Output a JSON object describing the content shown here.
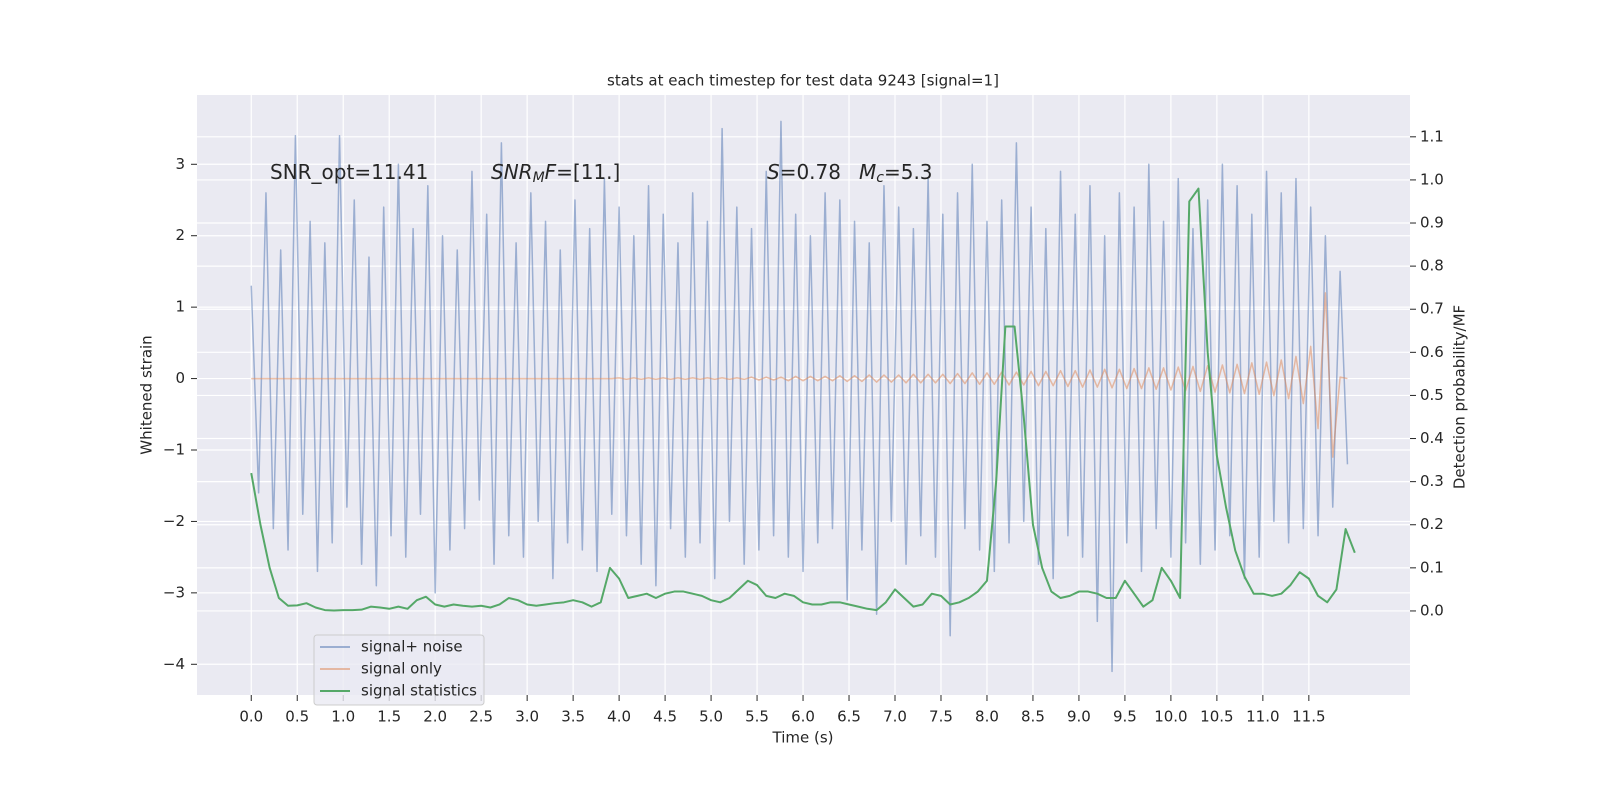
{
  "chart_data": {
    "type": "line",
    "title": "stats at each timestep for test data 9243 [signal=1]",
    "xlabel": "Time (s)",
    "ylabel": "Whitened strain",
    "y2label": "Detection probability/MF",
    "annotations": [
      [
        "SNR_opt=11.41"
      ],
      [
        "SNR",
        "M",
        "F",
        "=[11.]"
      ],
      [
        "S",
        "=0.78"
      ],
      [
        "M",
        "c",
        "=5.3"
      ]
    ],
    "x": [
      0,
      0.08,
      0.16,
      0.24,
      0.32,
      0.4,
      0.48,
      0.56,
      0.64,
      0.72,
      0.8,
      0.88,
      0.96,
      1.04,
      1.12,
      1.2,
      1.28,
      1.36,
      1.44,
      1.52,
      1.6,
      1.68,
      1.76,
      1.84,
      1.92,
      2,
      2.08,
      2.16,
      2.24,
      2.32,
      2.4,
      2.48,
      2.56,
      2.64,
      2.72,
      2.8,
      2.88,
      2.96,
      3.04,
      3.12,
      3.2,
      3.28,
      3.36,
      3.44,
      3.52,
      3.6,
      3.68,
      3.76,
      3.84,
      3.92,
      4,
      4.08,
      4.16,
      4.24,
      4.32,
      4.4,
      4.48,
      4.56,
      4.64,
      4.72,
      4.8,
      4.88,
      4.96,
      5.04,
      5.12,
      5.2,
      5.28,
      5.36,
      5.44,
      5.52,
      5.6,
      5.68,
      5.76,
      5.84,
      5.92,
      6,
      6.08,
      6.16,
      6.24,
      6.32,
      6.4,
      6.48,
      6.56,
      6.64,
      6.72,
      6.8,
      6.88,
      6.96,
      7.04,
      7.12,
      7.2,
      7.28,
      7.36,
      7.44,
      7.52,
      7.6,
      7.68,
      7.76,
      7.84,
      7.92,
      8,
      8.08,
      8.16,
      8.24,
      8.32,
      8.4,
      8.48,
      8.56,
      8.64,
      8.72,
      8.8,
      8.88,
      8.96,
      9.04,
      9.12,
      9.2,
      9.28,
      9.36,
      9.44,
      9.52,
      9.6,
      9.68,
      9.76,
      9.84,
      9.92,
      10,
      10.08,
      10.16,
      10.24,
      10.32,
      10.4,
      10.48,
      10.56,
      10.64,
      10.72,
      10.8,
      10.88,
      10.96,
      11.04,
      11.12,
      11.2,
      11.28,
      11.36,
      11.44,
      11.52,
      11.6,
      11.68,
      11.76,
      11.84,
      11.92
    ],
    "series": [
      {
        "name": "signal+ noise",
        "color": "#4c72b0",
        "opacity": 0.5,
        "values": [
          1.3,
          -1.6,
          2.6,
          -2.1,
          1.8,
          -2.4,
          3.4,
          -1.9,
          2.2,
          -2.7,
          1.9,
          -2.3,
          3.4,
          -1.8,
          2.5,
          -2.6,
          1.7,
          -2.9,
          2.4,
          -2.2,
          3.0,
          -2.5,
          2.1,
          -1.9,
          2.7,
          -3.0,
          2.0,
          -2.4,
          1.8,
          -2.1,
          2.9,
          -1.7,
          2.3,
          -2.6,
          3.3,
          -2.2,
          1.9,
          -2.5,
          2.6,
          -2.0,
          2.2,
          -2.8,
          1.8,
          -2.3,
          2.5,
          -2.4,
          2.1,
          -2.7,
          2.8,
          -1.9,
          2.4,
          -2.2,
          2.0,
          -2.6,
          2.7,
          -2.9,
          2.3,
          -2.1,
          1.9,
          -2.5,
          2.6,
          -2.3,
          2.2,
          -2.8,
          3.5,
          -2.0,
          2.4,
          -2.6,
          2.1,
          -2.4,
          2.9,
          -2.2,
          3.6,
          -2.5,
          2.3,
          -2.7,
          2.0,
          -2.3,
          2.6,
          -2.1,
          2.5,
          -3.1,
          2.2,
          -2.4,
          1.9,
          -3.3,
          2.7,
          -2.0,
          2.4,
          -2.6,
          2.1,
          -2.2,
          2.8,
          -2.5,
          2.3,
          -3.6,
          2.6,
          -2.1,
          3.0,
          -2.4,
          2.2,
          -2.7,
          2.5,
          -2.3,
          3.3,
          -2.0,
          2.4,
          -2.6,
          2.1,
          -2.8,
          2.9,
          -2.2,
          2.3,
          -2.5,
          2.7,
          -3.4,
          2.0,
          -4.1,
          2.6,
          -2.3,
          2.4,
          -2.7,
          3.0,
          -2.1,
          2.2,
          -2.5,
          2.8,
          -2.3,
          2.1,
          -2.6,
          2.5,
          -2.4,
          3.0,
          -2.2,
          2.7,
          -2.8,
          2.3,
          -2.5,
          2.9,
          -2.0,
          2.6,
          -2.3,
          2.8,
          -2.1,
          2.4,
          -2.2,
          2.0,
          -1.8,
          1.5,
          -1.2
        ]
      },
      {
        "name": "signal only",
        "color": "#dd8452",
        "opacity": 0.5,
        "values": [
          0,
          0,
          0,
          0,
          0,
          0,
          0,
          0,
          0,
          0,
          0,
          0,
          0,
          0,
          0,
          0,
          0,
          0,
          0,
          0,
          0,
          0,
          0,
          0,
          0,
          0,
          0,
          0,
          0,
          0,
          0,
          0,
          0,
          0,
          0,
          0,
          0,
          0,
          0,
          0,
          0,
          0,
          0,
          0,
          0,
          0,
          0,
          0,
          0,
          0,
          0.01,
          -0.01,
          0.01,
          -0.01,
          0.01,
          -0.01,
          0.01,
          -0.01,
          0.01,
          -0.01,
          0.01,
          -0.01,
          0.01,
          -0.01,
          0.01,
          -0.01,
          0.01,
          -0.01,
          0.02,
          -0.02,
          0.02,
          -0.02,
          0.02,
          -0.03,
          0.03,
          -0.03,
          0.03,
          -0.03,
          0.03,
          -0.03,
          0.04,
          -0.04,
          0.04,
          -0.04,
          0.05,
          -0.05,
          0.05,
          -0.05,
          0.05,
          -0.06,
          0.06,
          -0.06,
          0.06,
          -0.06,
          0.06,
          -0.07,
          0.07,
          -0.07,
          0.08,
          -0.08,
          0.08,
          -0.08,
          0.09,
          -0.09,
          0.09,
          -0.09,
          0.1,
          -0.1,
          0.1,
          -0.1,
          0.11,
          -0.11,
          0.11,
          -0.12,
          0.12,
          -0.12,
          0.13,
          -0.13,
          0.13,
          -0.14,
          0.14,
          -0.14,
          0.15,
          -0.15,
          0.15,
          -0.16,
          0.16,
          -0.17,
          0.17,
          -0.18,
          0.18,
          -0.19,
          0.19,
          -0.2,
          0.2,
          -0.21,
          0.22,
          -0.22,
          0.23,
          -0.24,
          0.26,
          -0.28,
          0.31,
          -0.35,
          0.45,
          -0.7,
          1.2,
          -1.1,
          0.02,
          0
        ]
      },
      {
        "name": "signal statistics",
        "color": "#55a868",
        "axis": "y2",
        "x": [
          0,
          0.1,
          0.2,
          0.3,
          0.4,
          0.5,
          0.6,
          0.7,
          0.8,
          0.9,
          1,
          1.1,
          1.2,
          1.3,
          1.4,
          1.5,
          1.6,
          1.7,
          1.8,
          1.9,
          2,
          2.1,
          2.2,
          2.3,
          2.4,
          2.5,
          2.6,
          2.7,
          2.8,
          2.9,
          3,
          3.1,
          3.2,
          3.3,
          3.4,
          3.5,
          3.6,
          3.7,
          3.8,
          3.9,
          4,
          4.1,
          4.2,
          4.3,
          4.4,
          4.5,
          4.6,
          4.7,
          4.8,
          4.9,
          5,
          5.1,
          5.2,
          5.3,
          5.4,
          5.5,
          5.6,
          5.7,
          5.8,
          5.9,
          6,
          6.1,
          6.2,
          6.3,
          6.4,
          6.5,
          6.6,
          6.7,
          6.8,
          6.9,
          7,
          7.1,
          7.2,
          7.3,
          7.4,
          7.5,
          7.6,
          7.7,
          7.8,
          7.9,
          8,
          8.1,
          8.2,
          8.3,
          8.4,
          8.5,
          8.6,
          8.7,
          8.8,
          8.9,
          9,
          9.1,
          9.2,
          9.3,
          9.4,
          9.5,
          9.6,
          9.7,
          9.8,
          9.9,
          10,
          10.1,
          10.2,
          10.3,
          10.4,
          10.5,
          10.6,
          10.7,
          10.8,
          10.9,
          11,
          11.1,
          11.2,
          11.3,
          11.4,
          11.5,
          11.6,
          11.7,
          11.8,
          11.9,
          12
        ],
        "values": [
          0.32,
          0.2,
          0.1,
          0.03,
          0.012,
          0.013,
          0.018,
          0.008,
          0.002,
          0.001,
          0.002,
          0.002,
          0.003,
          0.01,
          0.008,
          0.005,
          0.01,
          0.005,
          0.025,
          0.033,
          0.015,
          0.01,
          0.015,
          0.012,
          0.01,
          0.012,
          0.008,
          0.015,
          0.03,
          0.025,
          0.015,
          0.012,
          0.015,
          0.018,
          0.02,
          0.025,
          0.02,
          0.01,
          0.02,
          0.1,
          0.075,
          0.03,
          0.035,
          0.04,
          0.03,
          0.04,
          0.045,
          0.045,
          0.04,
          0.035,
          0.025,
          0.02,
          0.03,
          0.05,
          0.07,
          0.06,
          0.035,
          0.03,
          0.04,
          0.035,
          0.02,
          0.015,
          0.015,
          0.02,
          0.02,
          0.015,
          0.01,
          0.005,
          0.002,
          0.02,
          0.05,
          0.03,
          0.01,
          0.015,
          0.04,
          0.035,
          0.015,
          0.02,
          0.03,
          0.045,
          0.07,
          0.3,
          0.66,
          0.66,
          0.45,
          0.2,
          0.1,
          0.045,
          0.03,
          0.035,
          0.045,
          0.045,
          0.04,
          0.03,
          0.03,
          0.07,
          0.04,
          0.01,
          0.025,
          0.1,
          0.07,
          0.03,
          0.95,
          0.98,
          0.6,
          0.36,
          0.24,
          0.14,
          0.08,
          0.04,
          0.04,
          0.035,
          0.04,
          0.06,
          0.09,
          0.075,
          0.035,
          0.02,
          0.05,
          0.19,
          0.135
        ]
      }
    ],
    "xlim": [
      -0.59,
      12.6
    ],
    "ylim": [
      -4.43,
      3.97
    ],
    "y2lim": [
      -0.195,
      1.197
    ],
    "xticks": [
      {
        "value": 0,
        "label": "0.0"
      },
      0.5,
      {
        "value": 1,
        "label": "1.0"
      },
      1.5,
      {
        "value": 2,
        "label": "2.0"
      },
      2.5,
      {
        "value": 3,
        "label": "3.0"
      },
      3.5,
      {
        "value": 4,
        "label": "4.0"
      },
      4.5,
      {
        "value": 5,
        "label": "5.0"
      },
      5.5,
      {
        "value": 6,
        "label": "6.0"
      },
      6.5,
      {
        "value": 7,
        "label": "7.0"
      },
      7.5,
      {
        "value": 8,
        "label": "8.0"
      },
      8.5,
      {
        "value": 9,
        "label": "9.0"
      },
      9.5,
      {
        "value": 10,
        "label": "10.0"
      },
      10.5,
      {
        "value": 11,
        "label": "11.0"
      },
      11.5
    ],
    "yticks": [
      {
        "value": -4,
        "label": "−4"
      },
      {
        "value": -3,
        "label": "−3"
      },
      {
        "value": -2,
        "label": "−2"
      },
      {
        "value": -1,
        "label": "−1"
      },
      0,
      1,
      2,
      3
    ],
    "y2ticks": [
      {
        "value": 0,
        "label": "0.0"
      },
      0.1,
      0.2,
      0.3,
      0.4,
      0.5,
      0.6,
      0.7,
      0.8,
      0.9,
      {
        "value": 1,
        "label": "1.0"
      },
      1.1
    ],
    "grid": true,
    "legend": "lower left"
  }
}
